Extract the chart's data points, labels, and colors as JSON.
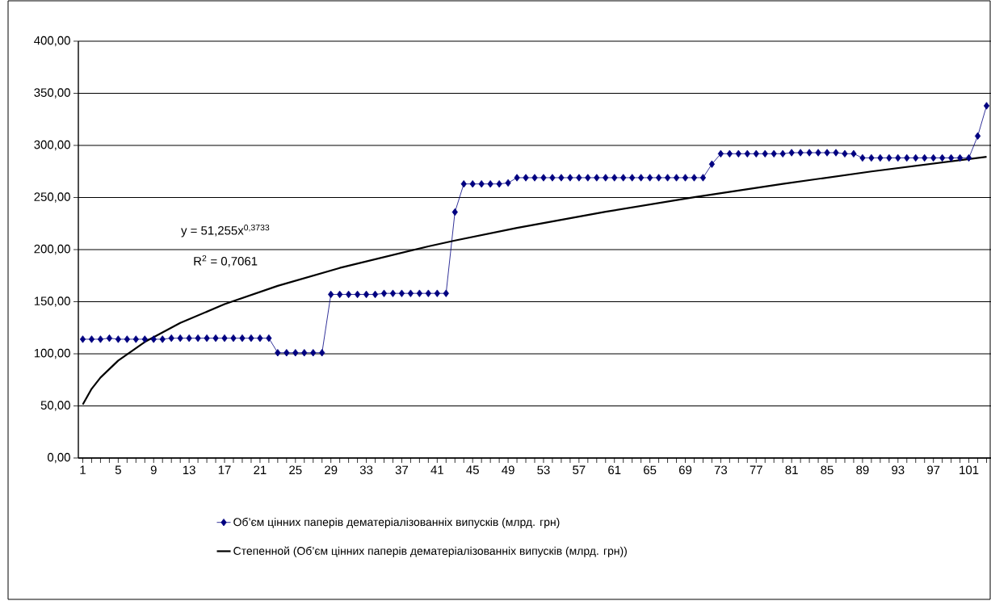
{
  "chart_data": {
    "type": "line",
    "x": [
      1,
      2,
      3,
      4,
      5,
      6,
      7,
      8,
      9,
      10,
      11,
      12,
      13,
      14,
      15,
      16,
      17,
      18,
      19,
      20,
      21,
      22,
      23,
      24,
      25,
      26,
      27,
      28,
      29,
      30,
      31,
      32,
      33,
      34,
      35,
      36,
      37,
      38,
      39,
      40,
      41,
      42,
      43,
      44,
      45,
      46,
      47,
      48,
      49,
      50,
      51,
      52,
      53,
      54,
      55,
      56,
      57,
      58,
      59,
      60,
      61,
      62,
      63,
      64,
      65,
      66,
      67,
      68,
      69,
      70,
      71,
      72,
      73,
      74,
      75,
      76,
      77,
      78,
      79,
      80,
      81,
      82,
      83,
      84,
      85,
      86,
      87,
      88,
      89,
      90,
      91,
      92,
      93,
      94,
      95,
      96,
      97,
      98,
      99,
      100,
      101,
      102,
      103
    ],
    "series": [
      {
        "name": "Об’єм цінних паперів дематеріалізованніх випусків (млрд. грн)",
        "color": "#000080",
        "marker": "diamond",
        "values": [
          114,
          114,
          114,
          115,
          114,
          114,
          114,
          114,
          114,
          114,
          115,
          115,
          115,
          115,
          115,
          115,
          115,
          115,
          115,
          115,
          115,
          115,
          101,
          101,
          101,
          101,
          101,
          101,
          157,
          157,
          157,
          157,
          157,
          157,
          158,
          158,
          158,
          158,
          158,
          158,
          158,
          158,
          236,
          263,
          263,
          263,
          263,
          263,
          264,
          269,
          269,
          269,
          269,
          269,
          269,
          269,
          269,
          269,
          269,
          269,
          269,
          269,
          269,
          269,
          269,
          269,
          269,
          269,
          269,
          269,
          269,
          282,
          292,
          292,
          292,
          292,
          292,
          292,
          292,
          292,
          293,
          293,
          293,
          293,
          293,
          293,
          292,
          292,
          288,
          288,
          288,
          288,
          288,
          288,
          288,
          288,
          288,
          288,
          288,
          288,
          288,
          309,
          338
        ]
      },
      {
        "name": "Степенной (Об’єм цінних паперів дематеріалізованніх випусків (млрд. грн))",
        "color": "#000000",
        "marker": "none",
        "x": [
          1,
          2,
          3,
          5,
          8,
          12,
          17,
          23,
          30,
          40,
          43,
          50,
          60,
          70,
          80,
          90,
          103
        ],
        "values": [
          51.3,
          66.4,
          77.2,
          93.5,
          111.4,
          129.6,
          147.6,
          165.2,
          182.4,
          203.1,
          208.7,
          220.8,
          236.3,
          250.3,
          263.1,
          275.0,
          289.1
        ]
      }
    ],
    "xlim": [
      0.5,
      103.5
    ],
    "xticks": [
      1,
      {
        "value": 2,
        "label": null
      },
      {
        "value": 3,
        "label": null
      },
      {
        "value": 4,
        "label": null
      },
      5,
      {
        "value": 6,
        "label": null
      },
      {
        "value": 7,
        "label": null
      },
      {
        "value": 8,
        "label": null
      },
      9,
      {
        "value": 10,
        "label": null
      },
      {
        "value": 11,
        "label": null
      },
      {
        "value": 12,
        "label": null
      },
      13,
      {
        "value": 14,
        "label": null
      },
      {
        "value": 15,
        "label": null
      },
      {
        "value": 16,
        "label": null
      },
      17,
      {
        "value": 18,
        "label": null
      },
      {
        "value": 19,
        "label": null
      },
      {
        "value": 20,
        "label": null
      },
      21,
      {
        "value": 22,
        "label": null
      },
      {
        "value": 23,
        "label": null
      },
      {
        "value": 24,
        "label": null
      },
      25,
      {
        "value": 26,
        "label": null
      },
      {
        "value": 27,
        "label": null
      },
      {
        "value": 28,
        "label": null
      },
      29,
      {
        "value": 30,
        "label": null
      },
      {
        "value": 31,
        "label": null
      },
      {
        "value": 32,
        "label": null
      },
      33,
      {
        "value": 34,
        "label": null
      },
      {
        "value": 35,
        "label": null
      },
      {
        "value": 36,
        "label": null
      },
      37,
      {
        "value": 38,
        "label": null
      },
      {
        "value": 39,
        "label": null
      },
      {
        "value": 40,
        "label": null
      },
      41,
      {
        "value": 42,
        "label": null
      },
      {
        "value": 43,
        "label": null
      },
      {
        "value": 44,
        "label": null
      },
      45,
      {
        "value": 46,
        "label": null
      },
      {
        "value": 47,
        "label": null
      },
      {
        "value": 48,
        "label": null
      },
      49,
      {
        "value": 50,
        "label": null
      },
      {
        "value": 51,
        "label": null
      },
      {
        "value": 52,
        "label": null
      },
      53,
      {
        "value": 54,
        "label": null
      },
      {
        "value": 55,
        "label": null
      },
      {
        "value": 56,
        "label": null
      },
      57,
      {
        "value": 58,
        "label": null
      },
      {
        "value": 59,
        "label": null
      },
      {
        "value": 60,
        "label": null
      },
      61,
      {
        "value": 62,
        "label": null
      },
      {
        "value": 63,
        "label": null
      },
      {
        "value": 64,
        "label": null
      },
      65,
      {
        "value": 66,
        "label": null
      },
      {
        "value": 67,
        "label": null
      },
      {
        "value": 68,
        "label": null
      },
      69,
      {
        "value": 70,
        "label": null
      },
      {
        "value": 71,
        "label": null
      },
      {
        "value": 72,
        "label": null
      },
      73,
      {
        "value": 74,
        "label": null
      },
      {
        "value": 75,
        "label": null
      },
      {
        "value": 76,
        "label": null
      },
      77,
      {
        "value": 78,
        "label": null
      },
      {
        "value": 79,
        "label": null
      },
      {
        "value": 80,
        "label": null
      },
      81,
      {
        "value": 82,
        "label": null
      },
      {
        "value": 83,
        "label": null
      },
      {
        "value": 84,
        "label": null
      },
      85,
      {
        "value": 86,
        "label": null
      },
      {
        "value": 87,
        "label": null
      },
      {
        "value": 88,
        "label": null
      },
      89,
      {
        "value": 90,
        "label": null
      },
      {
        "value": 91,
        "label": null
      },
      {
        "value": 92,
        "label": null
      },
      93,
      {
        "value": 94,
        "label": null
      },
      {
        "value": 95,
        "label": null
      },
      {
        "value": 96,
        "label": null
      },
      97,
      {
        "value": 98,
        "label": null
      },
      {
        "value": 99,
        "label": null
      },
      {
        "value": 100,
        "label": null
      },
      101,
      {
        "value": 102,
        "label": null
      },
      {
        "value": 103,
        "label": null
      }
    ],
    "ylim": [
      0,
      400
    ],
    "yticks": [
      {
        "value": 0,
        "label": "0,00"
      },
      {
        "value": 50,
        "label": "50,00"
      },
      {
        "value": 100,
        "label": "100,00"
      },
      {
        "value": 150,
        "label": "150,00"
      },
      {
        "value": 200,
        "label": "200,00"
      },
      {
        "value": 250,
        "label": "250,00"
      },
      {
        "value": 300,
        "label": "300,00"
      },
      {
        "value": 350,
        "label": "350,00"
      },
      {
        "value": 400,
        "label": "400,00"
      }
    ],
    "grid": "y",
    "legend": "bottom",
    "line_style": "solid",
    "annotations": [
      "y = 51,255x$^{0,3733}$",
      "R$^{2}$ = 0,7061"
    ]
  }
}
